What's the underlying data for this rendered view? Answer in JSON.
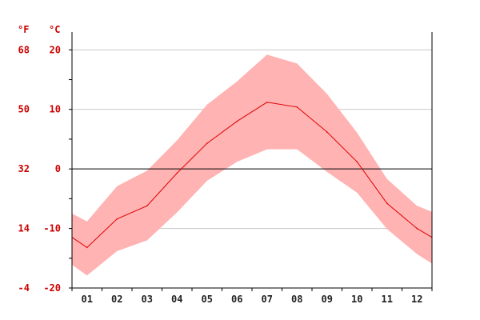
{
  "chart_data": {
    "type": "area",
    "title": "",
    "unit_left": "°F",
    "unit_right": "°C",
    "categories": [
      "01",
      "02",
      "03",
      "04",
      "05",
      "06",
      "07",
      "08",
      "09",
      "10",
      "11",
      "12"
    ],
    "ylim_celsius": [
      -20,
      23
    ],
    "celsius_ticks": [
      "20",
      "10",
      "0",
      "-10",
      "-20"
    ],
    "fahrenheit_ticks": [
      "68",
      "50",
      "32",
      "14",
      "-4"
    ],
    "grid": true,
    "series": [
      {
        "role": "mean",
        "x": [
          0,
          0.5,
          1.5,
          2.5,
          3.5,
          4.5,
          5.5,
          6.5,
          7.5,
          8.5,
          9.5,
          10.5,
          11.5,
          12
        ],
        "values": [
          -11.5,
          -13.2,
          -8.4,
          -6.2,
          -0.7,
          4.3,
          8.0,
          11.2,
          10.4,
          6.2,
          1.2,
          -5.8,
          -10.0,
          -11.5
        ]
      },
      {
        "role": "max",
        "x": [
          0,
          0.5,
          1.5,
          2.5,
          3.5,
          4.5,
          5.5,
          6.5,
          7.5,
          8.5,
          9.5,
          10.5,
          11.5,
          12
        ],
        "values": [
          -7.5,
          -8.8,
          -2.9,
          -0.3,
          4.8,
          10.8,
          14.7,
          19.2,
          17.7,
          12.6,
          6.1,
          -1.7,
          -6.2,
          -7.2
        ]
      },
      {
        "role": "min",
        "x": [
          0,
          0.5,
          1.5,
          2.5,
          3.5,
          4.5,
          5.5,
          6.5,
          7.5,
          8.5,
          9.5,
          10.5,
          11.5,
          12
        ],
        "values": [
          -16.1,
          -17.9,
          -13.8,
          -12.0,
          -7.3,
          -2.0,
          1.2,
          3.3,
          3.3,
          -0.5,
          -4.0,
          -10.1,
          -14.3,
          -15.9
        ]
      }
    ],
    "colors": {
      "band_fill": "#ffb3b3",
      "mean_line": "#e00000",
      "label_red": "#cc0000",
      "label_dark": "#222222",
      "grid": "#c8c8c8",
      "zero_line": "#000000"
    }
  }
}
